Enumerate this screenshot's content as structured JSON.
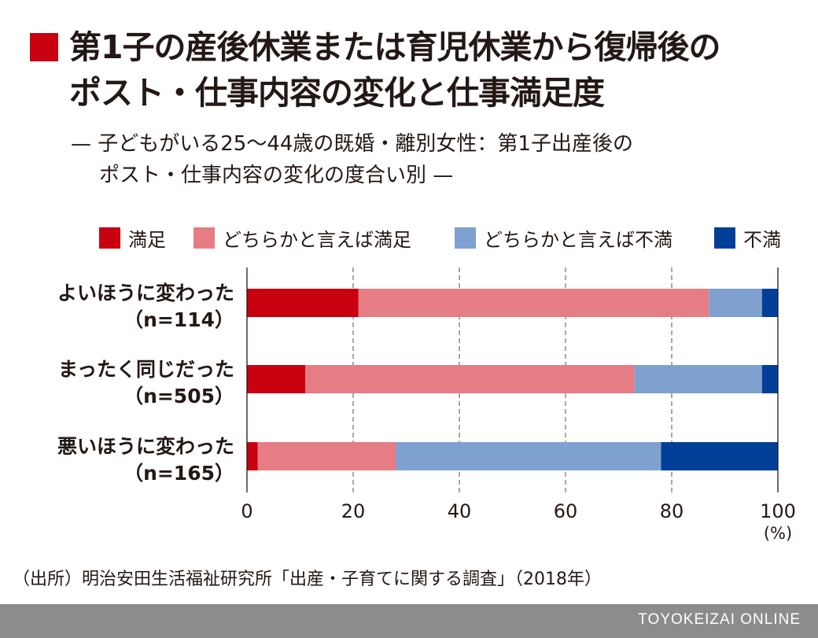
{
  "title": {
    "line1": "第1子の産後休業または育児休業から復帰後の",
    "line2": "ポスト・仕事内容の変化と仕事満足度"
  },
  "subtitle": {
    "line1": "— 子どもがいる25～44歳の既婚・離別女性：第1子出産後の",
    "line2": "ポスト・仕事内容の変化の度合い別 —"
  },
  "source": "（出所）明治安田生活福祉研究所「出産・子育てに関する調査」（2018年）",
  "footer": "TOYOKEIZAI ONLINE",
  "colors": {
    "title_marker": "#c8000f",
    "footer_bg": "#8c8c8c"
  },
  "chart_data": {
    "type": "bar",
    "orientation": "horizontal",
    "stacked": true,
    "categories": [
      {
        "label": "よいほうに変わった",
        "n": "（n=114）"
      },
      {
        "label": "まったく同じだった",
        "n": "（n=505）"
      },
      {
        "label": "悪いほうに変わった",
        "n": "（n=165）"
      }
    ],
    "series": [
      {
        "name": "満足",
        "color": "#c8000f",
        "values": [
          21,
          11,
          2
        ]
      },
      {
        "name": "どちらかと言えば満足",
        "color": "#e67c84",
        "values": [
          66,
          62,
          26
        ]
      },
      {
        "name": "どちらかと言えば不満",
        "color": "#7fa1cf",
        "values": [
          10,
          24,
          50
        ]
      },
      {
        "name": "不満",
        "color": "#003f98",
        "values": [
          3,
          3,
          22
        ]
      }
    ],
    "xlim": [
      0,
      100
    ],
    "xticks": [
      "0",
      "20",
      "40",
      "60",
      "80",
      "100"
    ],
    "xunit": "(%)",
    "grid": "dashed vertical",
    "legend_position": "top"
  }
}
